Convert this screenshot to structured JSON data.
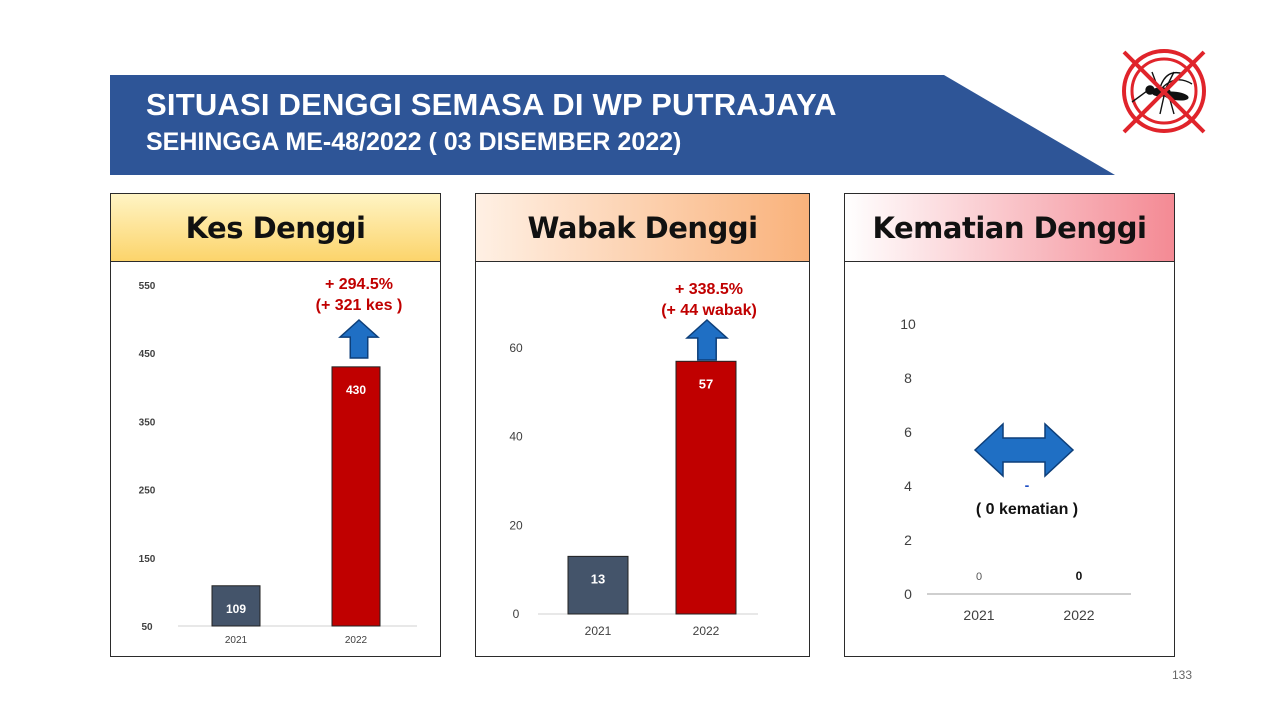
{
  "header": {
    "title": "SITUASI DENGGI SEMASA DI WP PUTRAJAYA",
    "subtitle": "SEHINGGA ME-48/2022 ( 03 DISEMBER 2022)",
    "banner_color": "#2e5597"
  },
  "logo": {
    "icon": "no-mosquito-icon",
    "color": "#e0242b"
  },
  "panels": [
    {
      "title": "Kes Denggi",
      "header_gradient": [
        "#fff4c4",
        "#fcd46b"
      ]
    },
    {
      "title": "Wabak Denggi",
      "header_gradient": [
        "#fff0e4",
        "#f9b27b"
      ]
    },
    {
      "title": "Kematian Denggi",
      "header_gradient": [
        "#ffffff",
        "#f48a94"
      ]
    }
  ],
  "chart_data": [
    {
      "type": "bar",
      "categories": [
        "2021",
        "2022"
      ],
      "values": [
        109,
        430
      ],
      "yticks": [
        50,
        150,
        250,
        350,
        450,
        550
      ],
      "ylim": [
        50,
        550
      ],
      "bar_colors": [
        "#44546a",
        "#c00000"
      ],
      "annotation": [
        "+ 294.5%",
        "(+ 321 kes )"
      ],
      "annotation_color": "#c00000",
      "arrow": "up-arrow-icon"
    },
    {
      "type": "bar",
      "categories": [
        "2021",
        "2022"
      ],
      "values": [
        13,
        57
      ],
      "yticks": [
        0,
        20,
        40,
        60
      ],
      "ylim": [
        0,
        60
      ],
      "bar_colors": [
        "#44546a",
        "#c00000"
      ],
      "annotation": [
        "+ 338.5%",
        "(+ 44 wabak)"
      ],
      "annotation_color": "#c00000",
      "arrow": "up-arrow-icon"
    },
    {
      "type": "bar",
      "categories": [
        "2021",
        "2022"
      ],
      "values": [
        0,
        0
      ],
      "yticks": [
        0,
        2,
        4,
        6,
        8,
        10
      ],
      "ylim": [
        0,
        10
      ],
      "annotation_dash": "-",
      "annotation": [
        "( 0 kematian )"
      ],
      "arrow": "left-right-arrow-icon"
    }
  ],
  "footer": {
    "page_number": "133"
  }
}
